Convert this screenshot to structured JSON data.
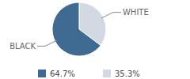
{
  "chart_data": {
    "type": "pie",
    "categories": [
      "BLACK",
      "WHITE"
    ],
    "values": [
      64.7,
      35.3
    ],
    "value_labels": [
      "64.7%",
      "35.3%"
    ],
    "colors": [
      "#3f6a92",
      "#d3d9e3"
    ],
    "legend": "bottom"
  }
}
